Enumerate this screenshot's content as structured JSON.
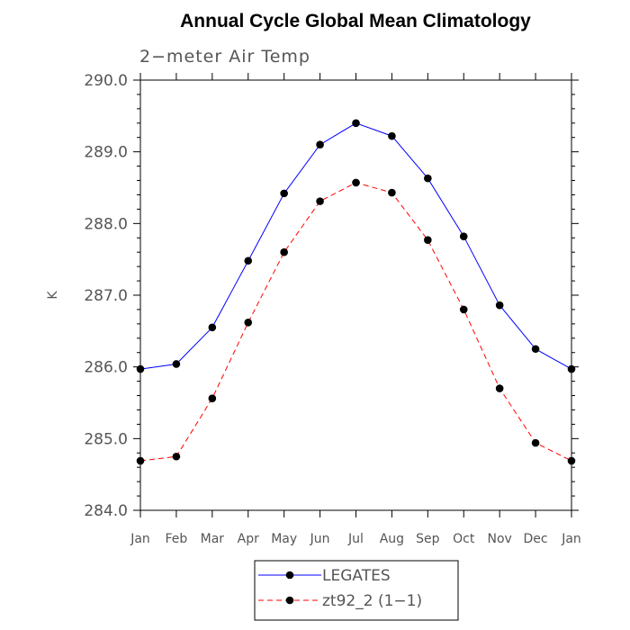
{
  "chart_data": {
    "type": "line",
    "title": "Annual Cycle Global Mean Climatology",
    "subtitle": "2−meter Air Temp",
    "xlabel": "",
    "ylabel": "K",
    "categories": [
      "Jan",
      "Feb",
      "Mar",
      "Apr",
      "May",
      "Jun",
      "Jul",
      "Aug",
      "Sep",
      "Oct",
      "Nov",
      "Dec",
      "Jan"
    ],
    "ylim": [
      284.0,
      290.0
    ],
    "yticks": [
      "284.0",
      "285.0",
      "286.0",
      "287.0",
      "288.0",
      "289.0",
      "290.0"
    ],
    "grid": false,
    "legend_position": "bottom-center",
    "series": [
      {
        "name": "LEGATES",
        "color": "#0000ff",
        "line_style": "solid",
        "marker": "filled-circle",
        "values": [
          285.97,
          286.04,
          286.55,
          287.48,
          288.42,
          289.1,
          289.4,
          289.22,
          288.63,
          287.82,
          286.86,
          286.25,
          285.97
        ]
      },
      {
        "name": "zt92_2 (1−1)",
        "color": "#ff0000",
        "line_style": "dashed",
        "marker": "filled-circle",
        "values": [
          284.69,
          284.75,
          285.56,
          286.62,
          287.6,
          288.31,
          288.57,
          288.43,
          287.77,
          286.8,
          285.7,
          284.94,
          284.69
        ]
      }
    ]
  }
}
